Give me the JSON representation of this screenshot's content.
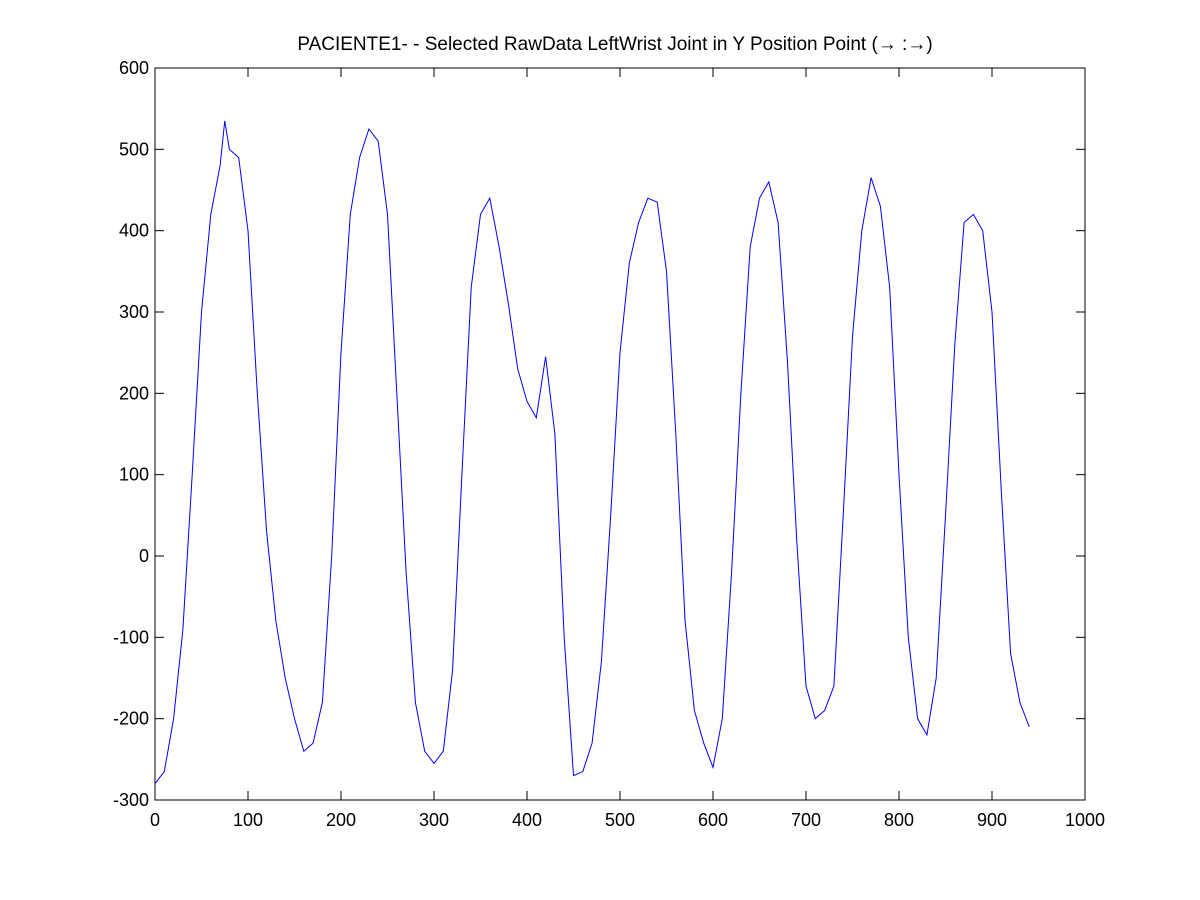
{
  "chart_data": {
    "type": "line",
    "title": "PACIENTE1- - Selected RawData LeftWrist Joint in Y Position Point (→ :→)",
    "x": [
      0,
      10,
      20,
      30,
      40,
      50,
      60,
      70,
      75,
      80,
      90,
      100,
      110,
      120,
      130,
      140,
      150,
      160,
      170,
      180,
      190,
      200,
      210,
      220,
      230,
      240,
      250,
      260,
      270,
      280,
      290,
      300,
      310,
      320,
      330,
      340,
      350,
      360,
      370,
      380,
      390,
      400,
      410,
      420,
      430,
      440,
      450,
      460,
      470,
      480,
      490,
      500,
      510,
      520,
      530,
      540,
      550,
      560,
      570,
      580,
      590,
      600,
      610,
      620,
      630,
      640,
      650,
      660,
      670,
      680,
      690,
      700,
      710,
      720,
      730,
      740,
      750,
      760,
      770,
      780,
      790,
      800,
      810,
      820,
      830,
      840,
      850,
      860,
      870,
      880,
      890,
      900,
      910,
      920,
      930,
      940
    ],
    "series": [
      {
        "color": "#0000ff",
        "values": [
          -280,
          -265,
          -200,
          -90,
          100,
          300,
          420,
          480,
          535,
          500,
          490,
          400,
          200,
          30,
          -80,
          -150,
          -200,
          -240,
          -230,
          -180,
          0,
          250,
          420,
          490,
          525,
          510,
          420,
          200,
          -20,
          -180,
          -240,
          -255,
          -240,
          -140,
          100,
          330,
          420,
          440,
          380,
          310,
          230,
          190,
          170,
          245,
          150,
          -100,
          -270,
          -265,
          -230,
          -130,
          50,
          250,
          360,
          410,
          440,
          435,
          350,
          150,
          -80,
          -190,
          -230,
          -260,
          -200,
          -20,
          200,
          380,
          440,
          460,
          410,
          240,
          20,
          -160,
          -200,
          -190,
          -160,
          50,
          270,
          400,
          465,
          430,
          330,
          100,
          -100,
          -200,
          -220,
          -150,
          50,
          260,
          410,
          420,
          400,
          300,
          80,
          -120,
          -180,
          -210
        ]
      }
    ],
    "xlim": [
      0,
      1000
    ],
    "xticks": [
      0,
      100,
      200,
      300,
      400,
      500,
      600,
      700,
      800,
      900,
      1000
    ],
    "ylim": [
      -300,
      600
    ],
    "yticks": [
      -300,
      -200,
      -100,
      0,
      100,
      200,
      300,
      400,
      500,
      600
    ]
  }
}
